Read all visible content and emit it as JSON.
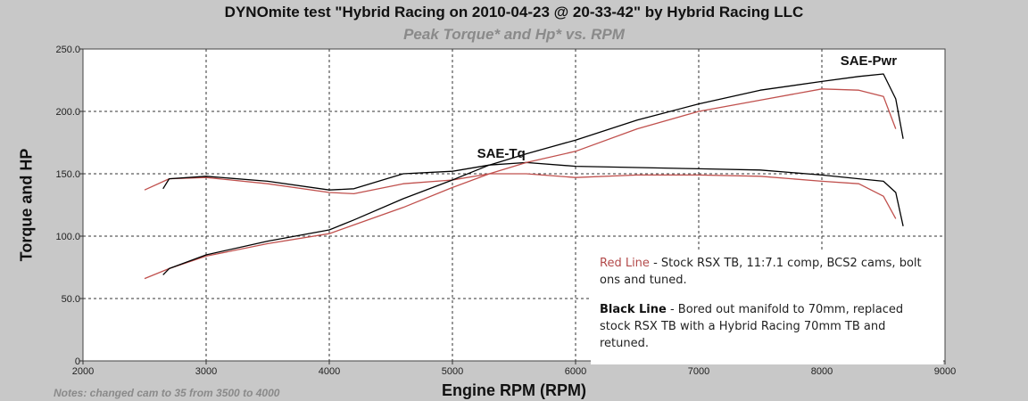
{
  "title": "DYNOmite test \"Hybrid Racing on 2010-04-23 @ 20-33-42\" by Hybrid Racing LLC",
  "subtitle": "Peak Torque* and Hp* vs. RPM",
  "note": "Notes: changed cam to 35 from 3500 to 4000",
  "legend": {
    "red_title": "Red Line",
    "red_text": " - Stock RSX TB, 11:7.1 comp, BCS2 cams, bolt ons and tuned.",
    "black_title": "Black Line",
    "black_text": " - Bored out manifold to 70mm, replaced stock RSX TB with a Hybrid Racing 70mm TB and retuned."
  },
  "colors": {
    "red": "#c0504d",
    "black": "#000000",
    "plot_bg": "#ffffff",
    "page_bg": "#c8c8c8"
  },
  "chart_data": {
    "type": "line",
    "title": "DYNOmite test \"Hybrid Racing on 2010-04-23 @ 20-33-42\" by Hybrid Racing LLC",
    "subtitle": "Peak Torque* and Hp* vs. RPM",
    "xlabel": "Engine RPM (RPM)",
    "ylabel": "Torque and HP",
    "xlim": [
      2000,
      9000
    ],
    "ylim": [
      0,
      250
    ],
    "xticks": [
      "2000",
      "3000",
      "4000",
      "5000",
      "6000",
      "7000",
      "8000",
      "9000"
    ],
    "yticks": [
      "0",
      "50.0",
      "100.0",
      "150.0",
      "200.0",
      "250.0"
    ],
    "grid": true,
    "annotations": [
      {
        "text": "SAE-Pwr",
        "x": 8150,
        "y": 237
      },
      {
        "text": "SAE-Tq",
        "x": 5200,
        "y": 163
      }
    ],
    "series": [
      {
        "color": "#c0504d",
        "x": [
          2500,
          2700,
          3000,
          3500,
          4000,
          4200,
          4600,
          5000,
          5300,
          5600,
          6000,
          6500,
          7000,
          7500,
          8000,
          8300,
          8500,
          8600
        ],
        "values": [
          137,
          146,
          147,
          142,
          135,
          134,
          142,
          145,
          150,
          150,
          147,
          149,
          149,
          148,
          144,
          142,
          132,
          114
        ]
      },
      {
        "color": "#000000",
        "x": [
          2650,
          2700,
          3000,
          3500,
          4000,
          4200,
          4600,
          5000,
          5300,
          5600,
          6000,
          6500,
          7000,
          7500,
          8000,
          8300,
          8500,
          8600,
          8660
        ],
        "values": [
          138,
          146,
          148,
          144,
          137,
          138,
          150,
          152,
          157,
          159,
          156,
          155,
          154,
          153,
          149,
          146,
          144,
          135,
          108
        ]
      },
      {
        "color": "#c0504d",
        "x": [
          2500,
          2700,
          3000,
          3500,
          4000,
          4200,
          4600,
          5000,
          5300,
          5600,
          6000,
          6500,
          7000,
          7500,
          8000,
          8300,
          8500,
          8600
        ],
        "values": [
          66,
          74,
          84,
          94,
          102,
          109,
          123,
          139,
          150,
          159,
          168,
          186,
          200,
          209,
          218,
          217,
          212,
          186
        ]
      },
      {
        "color": "#000000",
        "x": [
          2650,
          2700,
          3000,
          3500,
          4000,
          4200,
          4600,
          5000,
          5300,
          5600,
          6000,
          6500,
          7000,
          7500,
          8000,
          8300,
          8500,
          8600,
          8660
        ],
        "values": [
          69,
          74,
          85,
          96,
          105,
          113,
          130,
          145,
          157,
          166,
          177,
          193,
          206,
          217,
          224,
          228,
          230,
          210,
          178
        ]
      }
    ]
  }
}
